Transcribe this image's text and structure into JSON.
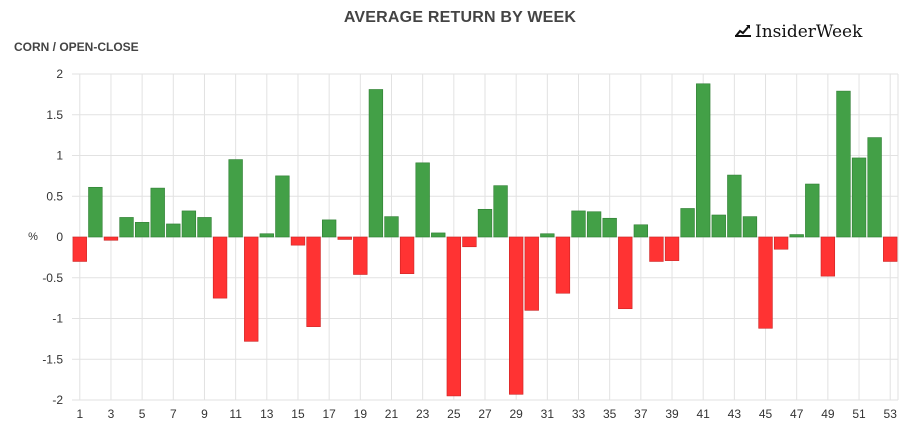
{
  "chart_data": {
    "type": "bar",
    "title": "AVERAGE RETURN BY WEEK",
    "subtitle": "CORN / OPEN-CLOSE",
    "ylabel": "%",
    "xlabel": "",
    "ylim": [
      -2,
      2
    ],
    "yticks": [
      2,
      1.5,
      1,
      0.5,
      0,
      -0.5,
      -1,
      -1.5,
      -2
    ],
    "xtick_labels": [
      "1",
      "3",
      "5",
      "7",
      "9",
      "11",
      "13",
      "15",
      "17",
      "19",
      "21",
      "23",
      "25",
      "27",
      "29",
      "31",
      "33",
      "35",
      "37",
      "39",
      "41",
      "43",
      "45",
      "47",
      "49",
      "51",
      "53"
    ],
    "categories": [
      1,
      2,
      3,
      4,
      5,
      6,
      7,
      8,
      9,
      10,
      11,
      12,
      13,
      14,
      15,
      16,
      17,
      18,
      19,
      20,
      21,
      22,
      23,
      24,
      25,
      26,
      27,
      28,
      29,
      30,
      31,
      32,
      33,
      34,
      35,
      36,
      37,
      38,
      39,
      40,
      41,
      42,
      43,
      44,
      45,
      46,
      47,
      48,
      49,
      50,
      51,
      52,
      53
    ],
    "values": [
      -0.3,
      0.61,
      -0.04,
      0.24,
      0.18,
      0.6,
      0.16,
      0.32,
      0.24,
      -0.75,
      0.95,
      -1.28,
      0.04,
      0.75,
      -0.1,
      -1.1,
      0.21,
      -0.03,
      -0.46,
      1.81,
      0.25,
      -0.45,
      0.91,
      0.05,
      -1.95,
      -0.12,
      0.34,
      0.63,
      -1.93,
      -0.9,
      0.04,
      -0.69,
      0.32,
      0.31,
      0.23,
      -0.88,
      0.15,
      -0.3,
      -0.29,
      0.35,
      1.88,
      0.27,
      0.76,
      0.25,
      -1.12,
      -0.15,
      0.03,
      0.65,
      -0.48,
      1.79,
      0.97,
      1.22,
      -0.3
    ],
    "grid": true,
    "legend": "none",
    "colors": {
      "positive": "#43a047",
      "negative": "#ff3333",
      "grid": "#e2e2e2"
    }
  },
  "brand": {
    "name": "InsiderWeek",
    "icon": "chart-trend-icon"
  }
}
